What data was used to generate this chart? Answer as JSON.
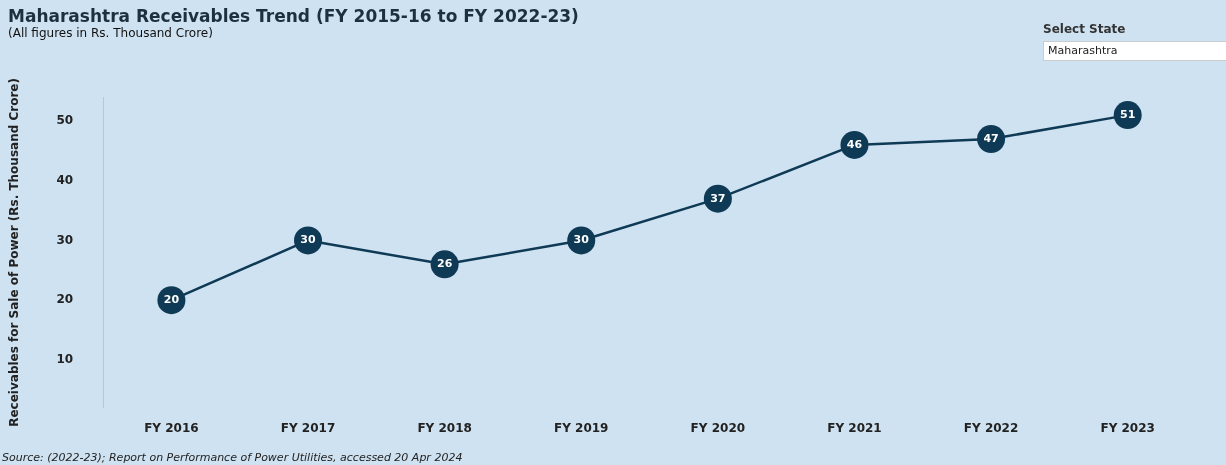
{
  "chart_data": {
    "type": "line",
    "title": "Maharashtra Receivables Trend (FY 2015-16 to FY 2022-23)",
    "subtitle": "(All figures in Rs. Thousand Crore)",
    "ylabel": "Receivables for Sale of Power (Rs. Thousand Crore)",
    "categories": [
      "FY 2016",
      "FY 2017",
      "FY 2018",
      "FY 2019",
      "FY 2020",
      "FY 2021",
      "FY 2022",
      "FY 2023"
    ],
    "series": [
      {
        "color": "#0f3a55",
        "values": [
          20,
          30,
          26,
          30,
          37,
          46,
          47,
          51
        ]
      }
    ],
    "ylim": [
      2,
      54
    ],
    "yticks": [
      10,
      20,
      30,
      40,
      50
    ],
    "grid": false,
    "legend": false,
    "marker": "circle",
    "line_style": "solid",
    "data_labels": true,
    "annotations": [
      "Select State",
      "Maharashtra",
      "Source: (2022-23); Report on Performance of Power Utilities, accessed 20 Apr 2024"
    ]
  }
}
